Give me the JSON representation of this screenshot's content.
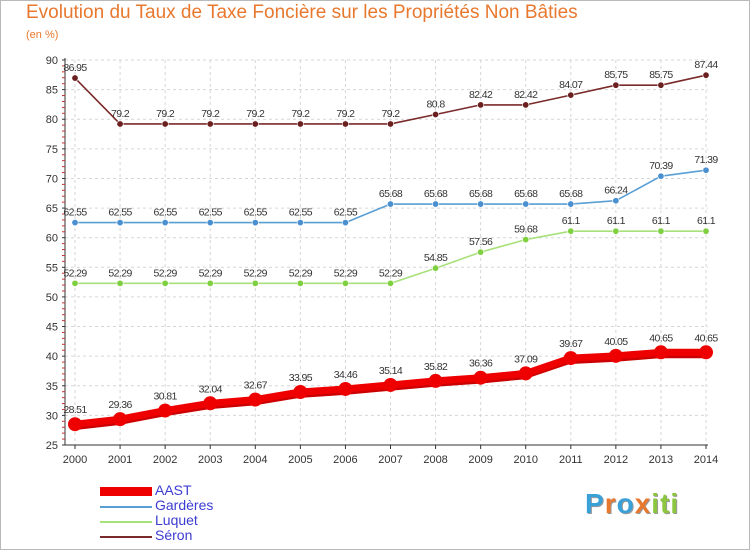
{
  "title": "Evolution du Taux de Taxe Foncière sur les Propriétés Non Bâties",
  "unit_label": "(en %)",
  "logo": {
    "letters": [
      "P",
      "r",
      "o",
      "x",
      "i",
      "t",
      "i"
    ],
    "colors": [
      "#3aa0d8",
      "#e8782e",
      "#3aa0d8",
      "#e8782e",
      "#8cc63f",
      "#8cc63f",
      "#8cc63f"
    ]
  },
  "chart_data": {
    "type": "line",
    "title": "Evolution du Taux de Taxe Foncière sur les Propriétés Non Bâties",
    "ylabel": "(en %)",
    "xlabel": "",
    "ylim": [
      25,
      90
    ],
    "yticks": [
      25,
      30,
      35,
      40,
      45,
      50,
      55,
      60,
      65,
      70,
      75,
      80,
      85,
      90
    ],
    "x": [
      2000,
      2001,
      2002,
      2003,
      2004,
      2005,
      2006,
      2007,
      2008,
      2009,
      2010,
      2011,
      2012,
      2013,
      2014
    ],
    "grid": true,
    "series": [
      {
        "name": "AAST",
        "color": "#ee0000",
        "marker": "#ee0000",
        "values": [
          28.51,
          29.36,
          30.81,
          32.04,
          32.67,
          33.95,
          34.46,
          35.14,
          35.82,
          36.36,
          37.09,
          39.67,
          40.05,
          40.65,
          40.65
        ],
        "labels": [
          "28.51",
          "29.36",
          "30.81",
          "32.04",
          "32.67",
          "33.95",
          "34.46",
          "35.14",
          "35.82",
          "36.36",
          "37.09",
          "39.67",
          "40.05",
          "40.65",
          "40.65"
        ]
      },
      {
        "name": "Gardères",
        "color": "#5a9fd4",
        "marker": "#4a90d0",
        "values": [
          62.55,
          62.55,
          62.55,
          62.55,
          62.55,
          62.55,
          62.55,
          65.68,
          65.68,
          65.68,
          65.68,
          65.68,
          66.24,
          70.39,
          71.39
        ],
        "labels": [
          "62.55",
          "62.55",
          "62.55",
          "62.55",
          "62.55",
          "62.55",
          "62.55",
          "65.68",
          "65.68",
          "65.68",
          "65.68",
          "65.68",
          "66.24",
          "70.39",
          "71.39"
        ]
      },
      {
        "name": "Luquet",
        "color": "#a8e07a",
        "marker": "#7fd040",
        "values": [
          52.29,
          52.29,
          52.29,
          52.29,
          52.29,
          52.29,
          52.29,
          52.29,
          54.85,
          57.56,
          59.68,
          61.1,
          61.1,
          61.1,
          61.1
        ],
        "labels": [
          "52.29",
          "52.29",
          "52.29",
          "52.29",
          "52.29",
          "52.29",
          "52.29",
          "52.29",
          "54.85",
          "57.56",
          "59.68",
          "61.1",
          "61.1",
          "61.1",
          "61.1"
        ]
      },
      {
        "name": "Séron",
        "color": "#7a2a2a",
        "marker": "#6b1f1f",
        "values": [
          86.95,
          79.2,
          79.2,
          79.2,
          79.2,
          79.2,
          79.2,
          79.2,
          80.8,
          82.42,
          82.42,
          84.07,
          85.75,
          85.75,
          87.44
        ],
        "labels": [
          "86.95",
          "79.2",
          "79.2",
          "79.2",
          "79.2",
          "79.2",
          "79.2",
          "79.2",
          "80.8",
          "82.42",
          "82.42",
          "84.07",
          "85.75",
          "85.75",
          "87.44"
        ]
      }
    ]
  }
}
